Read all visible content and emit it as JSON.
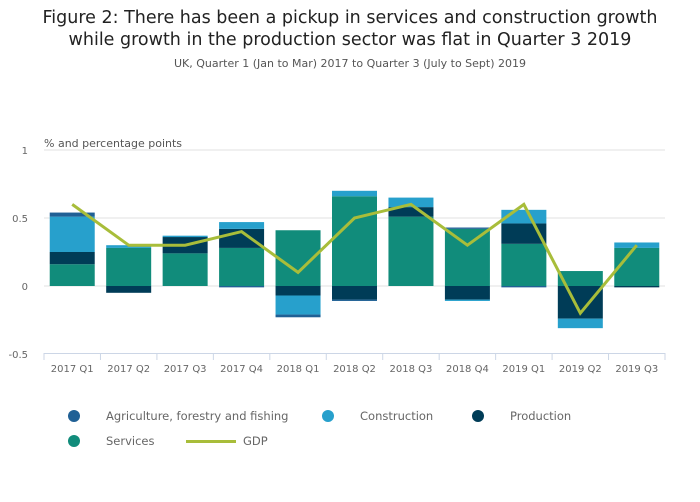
{
  "chart_data": {
    "type": "bar",
    "stacked": true,
    "title": "Figure 2: There has been a pickup in services and construction growth while growth in the production sector was flat in Quarter 3 2019",
    "title_lines": [
      "Figure 2: There has been a pickup in services and construction growth",
      "while growth in the production sector was flat in Quarter 3 2019"
    ],
    "subtitle": "UK, Quarter 1 (Jan to Mar) 2017 to Quarter 3 (July to Sept) 2019",
    "ylabel": "% and percentage points",
    "ylim": [
      -0.5,
      1
    ],
    "yticks": [
      -0.5,
      0,
      0.5,
      1
    ],
    "ytick_labels": [
      "-0.5",
      "0",
      "0.5",
      "1"
    ],
    "grid": true,
    "legend_position": "bottom",
    "categories": [
      "2017 Q1",
      "2017 Q2",
      "2017 Q3",
      "2017 Q4",
      "2018 Q1",
      "2018 Q2",
      "2018 Q3",
      "2018 Q4",
      "2019 Q1",
      "2019 Q2",
      "2019 Q3"
    ],
    "series": [
      {
        "name": "Services",
        "type": "bar",
        "color": "#118c7b",
        "values": [
          0.16,
          0.28,
          0.24,
          0.28,
          0.41,
          0.66,
          0.51,
          0.42,
          0.31,
          0.11,
          0.28
        ]
      },
      {
        "name": "Production",
        "type": "bar",
        "color": "#003c57",
        "values": [
          0.09,
          -0.05,
          0.12,
          0.14,
          -0.07,
          -0.1,
          0.07,
          -0.1,
          0.15,
          -0.24,
          -0.01
        ]
      },
      {
        "name": "Construction",
        "type": "bar",
        "color": "#27a0cc",
        "values": [
          0.26,
          0.02,
          0.01,
          0.05,
          -0.14,
          0.04,
          0.07,
          -0.01,
          0.1,
          -0.07,
          0.04
        ]
      },
      {
        "name": "Agriculture, forestry and fishing",
        "type": "bar",
        "color": "#206095",
        "values": [
          0.03,
          0,
          0,
          -0.01,
          -0.02,
          -0.01,
          0,
          0.01,
          -0.01,
          0,
          0
        ]
      },
      {
        "name": "GDP",
        "type": "line",
        "color": "#a8bd3a",
        "values": [
          0.6,
          0.3,
          0.3,
          0.4,
          0.1,
          0.5,
          0.6,
          0.3,
          0.6,
          -0.2,
          0.3
        ]
      }
    ]
  }
}
